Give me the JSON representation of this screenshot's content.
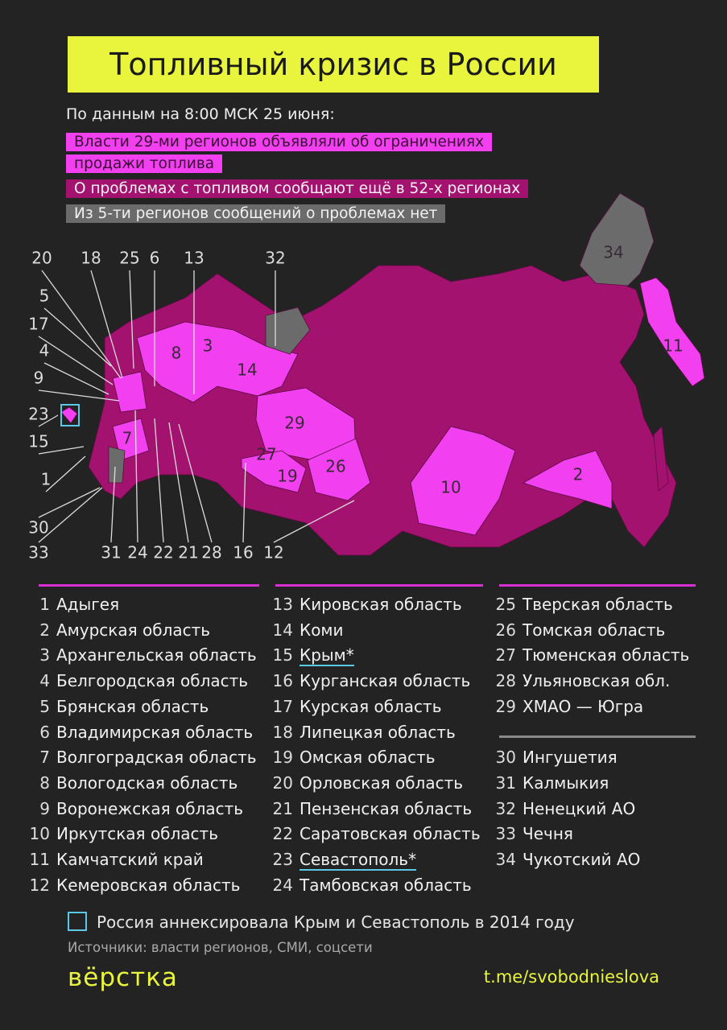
{
  "title": "Топливный кризис в России",
  "subtitle": "По данным на 8:00 МСК 25 июня:",
  "legend": [
    {
      "text": "Власти 29-ми регионов объявляли об ограничениях продажи топлива",
      "color": "#f23ff0"
    },
    {
      "text": "О проблемах с топливом сообщают ещё в 52-х регионах",
      "color": "#a3126f"
    },
    {
      "text": "Из 5-ти регионов сообщений о проблемах нет",
      "color": "#6b6b6b"
    }
  ],
  "map_labels": [
    "20",
    "18",
    "25",
    "6",
    "13",
    "32",
    "5",
    "17",
    "4",
    "9",
    "23",
    "15",
    "1",
    "30",
    "33",
    "31",
    "24",
    "22",
    "21",
    "28",
    "16",
    "12",
    "34",
    "11",
    "8",
    "3",
    "14",
    "29",
    "7",
    "27",
    "19",
    "26",
    "10",
    "2"
  ],
  "regions": [
    {
      "number": "1",
      "name": "Адыгея"
    },
    {
      "number": "2",
      "name": "Амурская область"
    },
    {
      "number": "3",
      "name": "Архангельская область"
    },
    {
      "number": "4",
      "name": "Белгородская область"
    },
    {
      "number": "5",
      "name": "Брянская область"
    },
    {
      "number": "6",
      "name": "Владимирская область"
    },
    {
      "number": "7",
      "name": "Волгоградская область"
    },
    {
      "number": "8",
      "name": "Вологодская область"
    },
    {
      "number": "9",
      "name": "Воронежская область"
    },
    {
      "number": "10",
      "name": "Иркутская область"
    },
    {
      "number": "11",
      "name": "Камчатский край"
    },
    {
      "number": "12",
      "name": "Кемеровская область"
    },
    {
      "number": "13",
      "name": "Кировская область"
    },
    {
      "number": "14",
      "name": "Коми"
    },
    {
      "number": "15",
      "name": "Крым*",
      "annexed": true
    },
    {
      "number": "16",
      "name": "Курганская область"
    },
    {
      "number": "17",
      "name": "Курская область"
    },
    {
      "number": "18",
      "name": "Липецкая область"
    },
    {
      "number": "19",
      "name": "Омская область"
    },
    {
      "number": "20",
      "name": "Орловская область"
    },
    {
      "number": "21",
      "name": "Пензенская область"
    },
    {
      "number": "22",
      "name": "Саратовская область"
    },
    {
      "number": "23",
      "name": "Севастополь*",
      "annexed": true
    },
    {
      "number": "24",
      "name": "Тамбовская область"
    },
    {
      "number": "25",
      "name": "Тверская область"
    },
    {
      "number": "26",
      "name": "Томская область"
    },
    {
      "number": "27",
      "name": "Тюменская область"
    },
    {
      "number": "28",
      "name": "Ульяновская обл."
    },
    {
      "number": "29",
      "name": "ХМАО — Югра"
    },
    {
      "number": "30",
      "name": "Ингушетия"
    },
    {
      "number": "31",
      "name": "Калмыкия"
    },
    {
      "number": "32",
      "name": "Ненецкий АО"
    },
    {
      "number": "33",
      "name": "Чечня"
    },
    {
      "number": "34",
      "name": "Чукотский АО"
    }
  ],
  "note": "Россия аннексировала Крым и Севастополь в 2014 году",
  "sources": "Источники: власти регионов, СМИ, соцсети",
  "logo": "вёрстка",
  "link": "t.me/svobodnieslova"
}
